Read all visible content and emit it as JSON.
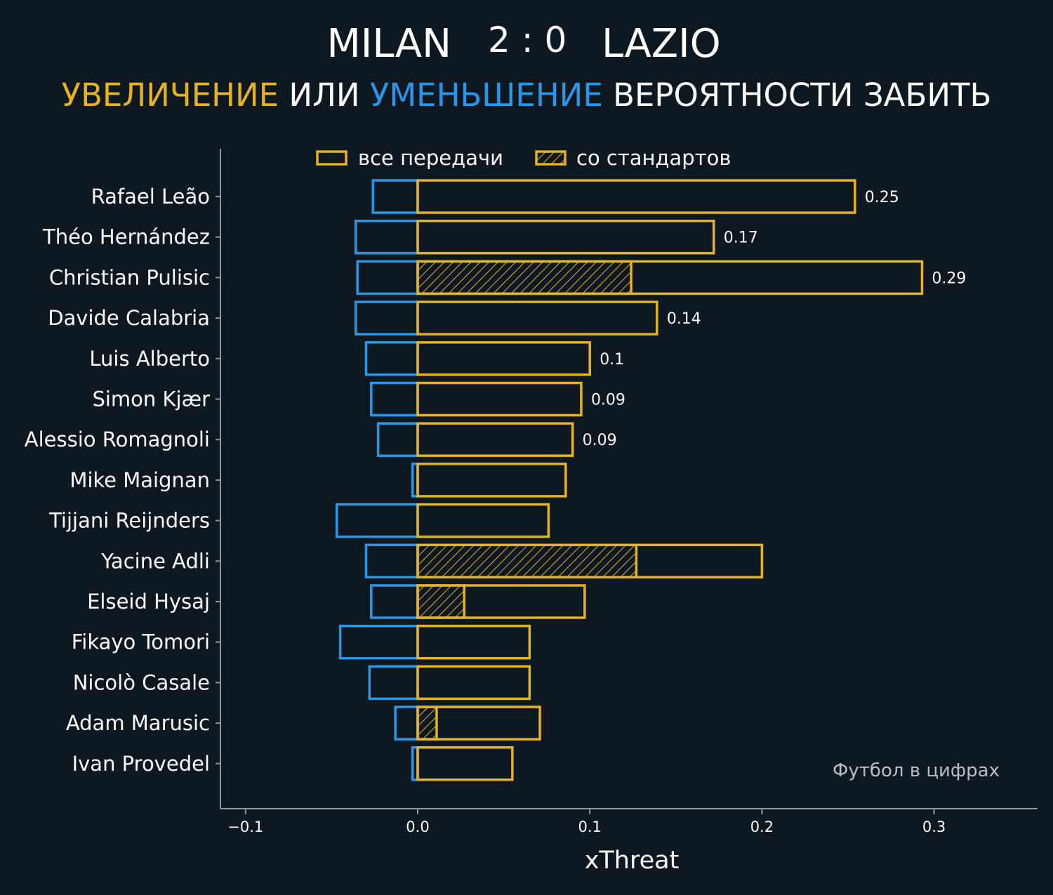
{
  "header": {
    "home_team": "MILAN",
    "score": "2 : 0",
    "away_team": "LAZIO",
    "subtitle_up": "УВЕЛИЧЕНИЕ",
    "subtitle_or": "ИЛИ",
    "subtitle_down": "УМЕНЬШЕНИЕ",
    "subtitle_rest": "ВЕРОЯТНОСТИ ЗАБИТЬ"
  },
  "watermark": "Футбол в цифрах",
  "colors": {
    "background": "#0e1821",
    "positive": "#e3b324",
    "negative": "#2b95e6",
    "axis": "#8a98a4"
  },
  "chart_data": {
    "type": "bar",
    "orientation": "horizontal",
    "xlabel": "xThreat",
    "xlim": [
      -0.115,
      0.36
    ],
    "xticks": [
      -0.1,
      0.0,
      0.1,
      0.2,
      0.3
    ],
    "xtick_labels": [
      "−0.1",
      "0.0",
      "0.1",
      "0.2",
      "0.3"
    ],
    "legend": {
      "position": "top",
      "entries": [
        "все передачи",
        "со стандартов"
      ]
    },
    "categories": [
      "Rafael Leão",
      "Théo Hernández",
      "Christian Pulisic",
      "Davide Calabria",
      "Luis Alberto",
      "Simon Kjær",
      "Alessio Romagnoli",
      "Mike Maignan",
      "Tijjani Reijnders",
      "Yacine Adli",
      "Elseid Hysaj",
      "Fikayo Tomori",
      "Nicolò Casale",
      "Adam Marusic",
      "Ivan Provedel"
    ],
    "series": [
      {
        "name": "все передачи",
        "kind": "positive",
        "values": [
          0.254,
          0.172,
          0.293,
          0.139,
          0.1,
          0.095,
          0.09,
          0.086,
          0.076,
          0.2,
          0.097,
          0.065,
          0.065,
          0.071,
          0.055
        ]
      },
      {
        "name": "со стандартов",
        "kind": "positive-set-piece",
        "values": [
          0,
          0,
          0.124,
          0,
          0,
          0,
          0,
          0,
          0,
          0.127,
          0.027,
          0,
          0,
          0.011,
          0
        ]
      },
      {
        "kind": "negative",
        "values": [
          -0.026,
          -0.036,
          -0.035,
          -0.036,
          -0.03,
          -0.027,
          -0.023,
          -0.003,
          -0.047,
          -0.03,
          -0.027,
          -0.045,
          -0.028,
          -0.013,
          -0.003
        ]
      }
    ],
    "value_labels": [
      "0.25",
      "0.17",
      "0.29",
      "0.14",
      "0.1",
      "0.09",
      "0.09",
      "",
      "",
      "",
      "",
      "",
      "",
      "",
      ""
    ]
  }
}
